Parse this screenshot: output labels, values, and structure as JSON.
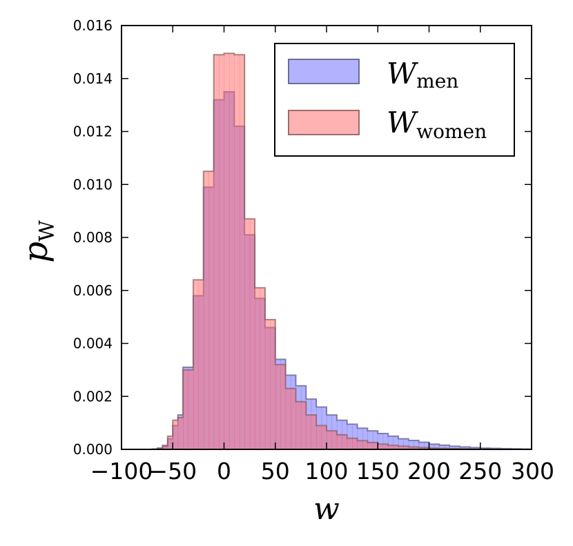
{
  "chart_data": {
    "type": "histogram",
    "title": "",
    "xlabel": "w",
    "ylabel": "p",
    "ylabel_subscript": "W",
    "xlim": [
      -100,
      300
    ],
    "ylim": [
      0,
      0.016
    ],
    "x_ticks": [
      -100,
      -50,
      0,
      50,
      100,
      150,
      200,
      250,
      300
    ],
    "x_tick_labels": [
      "−100",
      "−50",
      "0",
      "50",
      "100",
      "150",
      "200",
      "250",
      "300"
    ],
    "y_ticks": [
      0,
      0.002,
      0.004,
      0.006,
      0.008,
      0.01,
      0.012,
      0.014,
      0.016
    ],
    "y_tick_labels": [
      "0.000",
      "0.002",
      "0.004",
      "0.006",
      "0.008",
      "0.010",
      "0.012",
      "0.014",
      "0.016"
    ],
    "bin_edges": [
      -70,
      -65,
      -60,
      -55,
      -50,
      -45,
      -40,
      -35,
      -30,
      -25,
      -20,
      -15,
      -10,
      -5,
      0,
      5,
      10,
      15,
      20,
      25,
      30,
      35,
      40,
      45,
      50,
      55,
      60,
      65,
      70,
      75,
      80,
      85,
      90,
      95,
      100,
      105,
      110,
      115,
      120,
      125,
      130,
      135,
      140,
      145,
      150,
      155,
      160,
      165,
      170,
      175,
      180,
      185,
      190,
      195,
      200,
      205,
      210,
      215,
      220,
      225,
      230,
      235,
      240,
      245,
      250,
      255,
      260,
      265,
      270,
      275,
      280,
      285,
      290,
      295,
      300
    ],
    "legend_position": "top-right",
    "series": [
      {
        "name": "men",
        "legend_label": "W",
        "legend_sub": "men",
        "color": "#6666ff",
        "values": [
          1e-05,
          5e-05,
          0.00015,
          0.0004,
          0.0009,
          0.0013,
          0.0031,
          0.0031,
          0.0058,
          0.0058,
          0.0099,
          0.0099,
          0.0132,
          0.0132,
          0.0135,
          0.0135,
          0.0122,
          0.0122,
          0.0081,
          0.0081,
          0.0057,
          0.0057,
          0.0046,
          0.0046,
          0.0034,
          0.0034,
          0.0028,
          0.0028,
          0.0024,
          0.0024,
          0.0019,
          0.0019,
          0.0016,
          0.0016,
          0.0013,
          0.0013,
          0.0011,
          0.0011,
          0.00095,
          0.00095,
          0.0008,
          0.0008,
          0.0007,
          0.0007,
          0.0006,
          0.0006,
          0.0005,
          0.0005,
          0.0004,
          0.0004,
          0.00034,
          0.00034,
          0.00027,
          0.00027,
          0.0002,
          0.0002,
          0.00016,
          0.00016,
          0.00012,
          0.00012,
          9e-05,
          9e-05,
          7e-05,
          7e-05,
          5e-05,
          5e-05,
          4e-05,
          4e-05,
          3e-05,
          3e-05,
          2e-05,
          2e-05,
          1e-05,
          1e-05
        ]
      },
      {
        "name": "women",
        "legend_label": "W",
        "legend_sub": "women",
        "color": "#ff6666",
        "values": [
          1e-05,
          4e-05,
          0.00012,
          0.0005,
          0.0011,
          0.0012,
          0.003,
          0.003,
          0.0064,
          0.0064,
          0.0105,
          0.0105,
          0.0149,
          0.0149,
          0.01495,
          0.01495,
          0.0149,
          0.0149,
          0.0087,
          0.0087,
          0.0061,
          0.0061,
          0.0049,
          0.0049,
          0.0032,
          0.0032,
          0.0023,
          0.0023,
          0.0018,
          0.0018,
          0.0013,
          0.0013,
          0.0009,
          0.0009,
          0.0007,
          0.0007,
          0.00055,
          0.00055,
          0.00042,
          0.00042,
          0.00033,
          0.00033,
          0.00026,
          0.00026,
          0.0002,
          0.0002,
          0.00015,
          0.00015,
          0.00012,
          0.00012,
          9e-05,
          9e-05,
          7e-05,
          7e-05,
          5e-05,
          5e-05,
          4e-05,
          4e-05,
          3e-05,
          3e-05,
          2e-05,
          2e-05,
          1e-05,
          1e-05,
          1e-05,
          1e-05,
          5e-06,
          5e-06,
          0,
          0,
          0,
          0,
          0,
          0
        ]
      }
    ]
  }
}
